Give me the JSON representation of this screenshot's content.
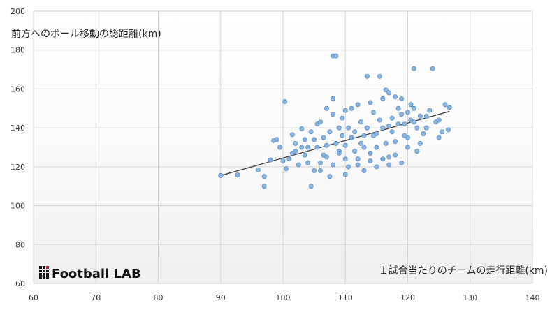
{
  "chart_data": {
    "type": "scatter",
    "title": "",
    "xlabel": "１試合当たりのチームの走行距離(km)",
    "ylabel": "前方へのボール移動の総距離(km)",
    "xlim": [
      60,
      140
    ],
    "ylim": [
      60,
      200
    ],
    "x_ticks": [
      60,
      70,
      80,
      90,
      100,
      110,
      120,
      130,
      140
    ],
    "y_ticks": [
      60,
      80,
      100,
      120,
      140,
      160,
      180,
      200
    ],
    "grid": "vertical-and-horizontal",
    "series": [
      {
        "marker_color": "#8ab4e0",
        "marker_edge_color": "#5b8fc9",
        "points": [
          [
            90.0,
            115.5
          ],
          [
            92.7,
            115.8
          ],
          [
            96.0,
            118.4
          ],
          [
            97.0,
            110.0
          ],
          [
            97.0,
            115.0
          ],
          [
            98.0,
            123.5
          ],
          [
            98.5,
            133.5
          ],
          [
            99.0,
            134.0
          ],
          [
            100.3,
            153.5
          ],
          [
            100.5,
            119.0
          ],
          [
            101.0,
            124.0
          ],
          [
            101.5,
            136.5
          ],
          [
            102.0,
            128.0
          ],
          [
            102.5,
            121.0
          ],
          [
            103.0,
            139.5
          ],
          [
            103.5,
            126.0
          ],
          [
            104.0,
            130.0
          ],
          [
            104.5,
            110.0
          ],
          [
            105.0,
            118.0
          ],
          [
            105.5,
            142.0
          ],
          [
            106.0,
            122.0
          ],
          [
            106.5,
            135.0
          ],
          [
            107.0,
            150.0
          ],
          [
            107.5,
            115.0
          ],
          [
            108.0,
            177.0
          ],
          [
            108.5,
            177.0
          ],
          [
            109.0,
            128.0
          ],
          [
            109.5,
            145.0
          ],
          [
            110.0,
            131.0
          ],
          [
            110.5,
            120.0
          ],
          [
            111.0,
            150.0
          ],
          [
            111.5,
            138.0
          ],
          [
            112.0,
            124.0
          ],
          [
            112.5,
            143.0
          ],
          [
            113.0,
            136.0
          ],
          [
            113.5,
            166.5
          ],
          [
            114.0,
            127.0
          ],
          [
            114.5,
            148.0
          ],
          [
            115.0,
            130.0
          ],
          [
            115.5,
            166.5
          ],
          [
            116.0,
            140.0
          ],
          [
            116.5,
            159.5
          ],
          [
            117.0,
            125.0
          ],
          [
            117.5,
            145.0
          ],
          [
            118.0,
            133.0
          ],
          [
            118.5,
            150.0
          ],
          [
            119.0,
            122.0
          ],
          [
            119.5,
            142.0
          ],
          [
            120.0,
            135.0
          ],
          [
            120.5,
            152.0
          ],
          [
            121.0,
            170.5
          ],
          [
            121.5,
            128.0
          ],
          [
            122.0,
            146.0
          ],
          [
            122.5,
            137.0
          ],
          [
            123.0,
            140.0
          ],
          [
            123.5,
            149.0
          ],
          [
            124.0,
            170.5
          ],
          [
            124.5,
            143.0
          ],
          [
            125.0,
            135.0
          ],
          [
            125.5,
            138.0
          ],
          [
            126.0,
            152.0
          ],
          [
            126.5,
            139.0
          ],
          [
            126.7,
            150.5
          ],
          [
            103.5,
            134.0
          ],
          [
            104.5,
            138.0
          ],
          [
            105.5,
            130.0
          ],
          [
            106.5,
            126.0
          ],
          [
            107.5,
            138.0
          ],
          [
            108.5,
            132.0
          ],
          [
            109.5,
            136.0
          ],
          [
            110.5,
            140.0
          ],
          [
            111.5,
            128.0
          ],
          [
            112.5,
            132.0
          ],
          [
            113.5,
            140.0
          ],
          [
            114.5,
            136.0
          ],
          [
            115.5,
            144.0
          ],
          [
            116.5,
            132.0
          ],
          [
            117.5,
            138.0
          ],
          [
            118.5,
            142.0
          ],
          [
            119.5,
            136.0
          ],
          [
            120.5,
            144.0
          ],
          [
            121.5,
            140.0
          ],
          [
            106.0,
            143.0
          ],
          [
            108.0,
            147.0
          ],
          [
            110.0,
            149.0
          ],
          [
            112.0,
            152.0
          ],
          [
            114.0,
            153.0
          ],
          [
            116.0,
            155.0
          ],
          [
            118.0,
            156.0
          ],
          [
            120.0,
            148.0
          ],
          [
            104.0,
            122.0
          ],
          [
            106.0,
            118.0
          ],
          [
            108.0,
            121.0
          ],
          [
            110.0,
            124.0
          ],
          [
            112.0,
            121.0
          ],
          [
            114.0,
            123.0
          ],
          [
            116.0,
            124.0
          ],
          [
            118.0,
            126.0
          ],
          [
            120.0,
            130.0
          ],
          [
            122.0,
            132.0
          ],
          [
            108.0,
            155.0
          ],
          [
            117.0,
            158.0
          ],
          [
            103.0,
            130.0
          ],
          [
            105.0,
            134.0
          ],
          [
            107.0,
            131.0
          ],
          [
            109.0,
            140.0
          ],
          [
            111.0,
            135.0
          ],
          [
            113.0,
            130.0
          ],
          [
            115.0,
            137.0
          ],
          [
            117.0,
            141.0
          ],
          [
            119.0,
            147.0
          ],
          [
            121.0,
            143.0
          ],
          [
            102.0,
            132.0
          ],
          [
            101.5,
            127.0
          ],
          [
            100.0,
            123.0
          ],
          [
            99.5,
            130.0
          ],
          [
            119.0,
            155.0
          ],
          [
            121.0,
            150.0
          ],
          [
            123.0,
            146.0
          ],
          [
            125.0,
            144.0
          ],
          [
            110.0,
            116.0
          ],
          [
            113.0,
            118.0
          ],
          [
            115.0,
            120.0
          ],
          [
            117.0,
            121.0
          ],
          [
            107.0,
            125.0
          ],
          [
            109.0,
            127.0
          ]
        ]
      }
    ],
    "trendline": {
      "from": [
        90.0,
        115.5
      ],
      "to": [
        126.7,
        148.5
      ],
      "color": "#444444"
    }
  },
  "logo": {
    "text": "Football LAB"
  }
}
